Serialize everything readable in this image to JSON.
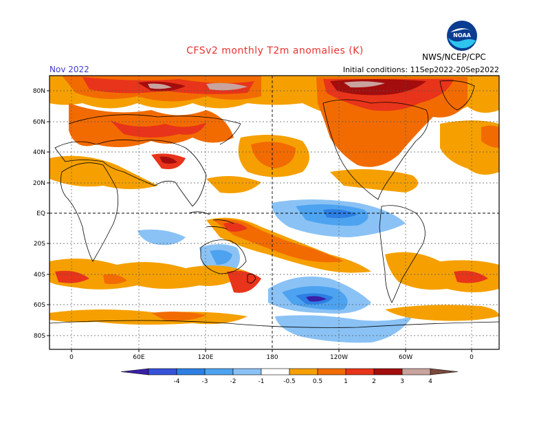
{
  "title": "CFSv2 monthly T2m anomalies (K)",
  "period": "Nov 2022",
  "initial_conditions": "Initial conditions: 11Sep2022-20Sep2022",
  "agency": "NWS/NCEP/CPC",
  "logo_text": "NOAA",
  "lat_labels": [
    "80N",
    "60N",
    "40N",
    "20N",
    "EQ",
    "20S",
    "40S",
    "60S",
    "80S"
  ],
  "lon_labels": [
    "0",
    "60E",
    "120E",
    "180",
    "120W",
    "60W",
    "0"
  ],
  "colorbar": {
    "labels": [
      "-4",
      "-3",
      "-2",
      "-1",
      "-0.5",
      "0.5",
      "1",
      "2",
      "3",
      "4"
    ],
    "colors": [
      "#3a1fa8",
      "#3552d8",
      "#2d7fe3",
      "#4da3f0",
      "#8ac2f5",
      "#ffffff",
      "#f5a000",
      "#f26b00",
      "#e8341a",
      "#a30d0d",
      "#c9a39d",
      "#7a4a3d"
    ]
  },
  "colors": {
    "title": "#e8312f",
    "period": "#3b3bd0",
    "ocean_neutral": "#ffffff"
  }
}
